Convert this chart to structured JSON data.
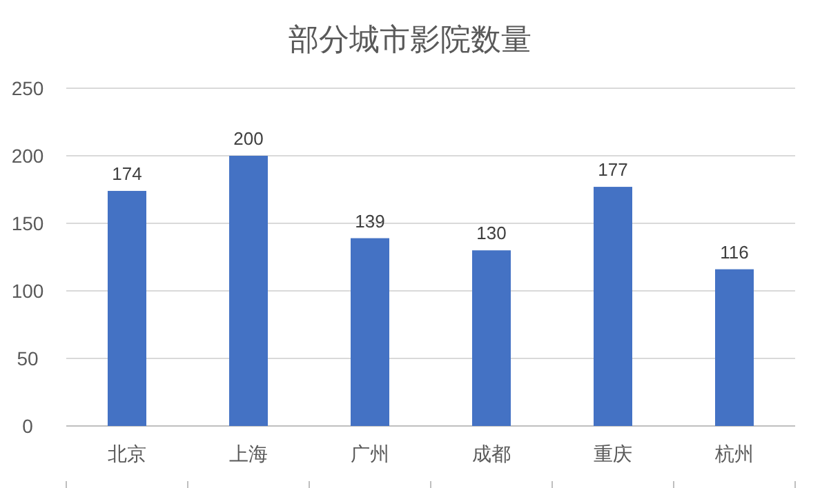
{
  "chart_data": {
    "type": "bar",
    "title": "部分城市影院数量",
    "categories": [
      "北京",
      "上海",
      "广州",
      "成都",
      "重庆",
      "杭州"
    ],
    "values": [
      174,
      200,
      139,
      130,
      177,
      116
    ],
    "color": "#4472c4",
    "ylim": [
      0,
      250
    ],
    "yticks": [
      0,
      50,
      100,
      150,
      200,
      250
    ],
    "grid": "y",
    "data_labels": true
  }
}
